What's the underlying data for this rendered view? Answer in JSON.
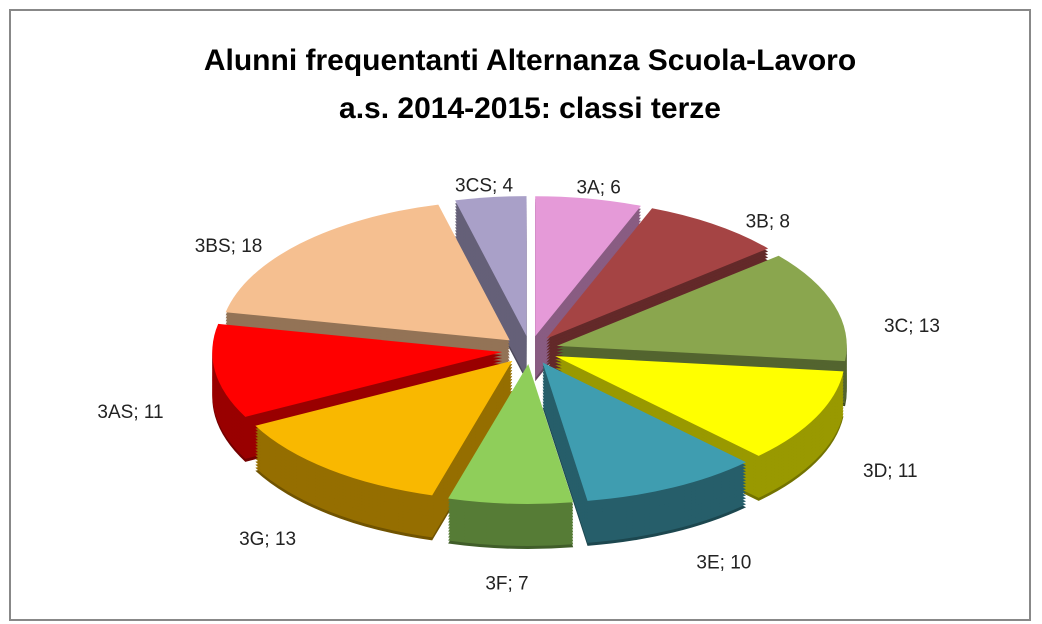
{
  "chart_data": {
    "type": "pie",
    "title": [
      "Alunni frequentanti Alternanza Scuola-Lavoro",
      "a.s. 2014-2015: classi terze"
    ],
    "values": [
      6,
      8,
      13,
      11,
      10,
      7,
      13,
      11,
      18,
      4
    ],
    "value_labels": [
      "3A; 6",
      "3B; 8",
      "3C; 13",
      "3D; 11",
      "3E; 10",
      "3F; 7",
      "3G; 13",
      "3AS; 11",
      "3BS; 18",
      "3CS; 4"
    ],
    "colors": [
      "#e59ad8",
      "#a54444",
      "#8aa64e",
      "#ffff00",
      "#3f9db0",
      "#8fce5a",
      "#f9b800",
      "#ff0000",
      "#f5bf90",
      "#a9a0c8"
    ]
  }
}
